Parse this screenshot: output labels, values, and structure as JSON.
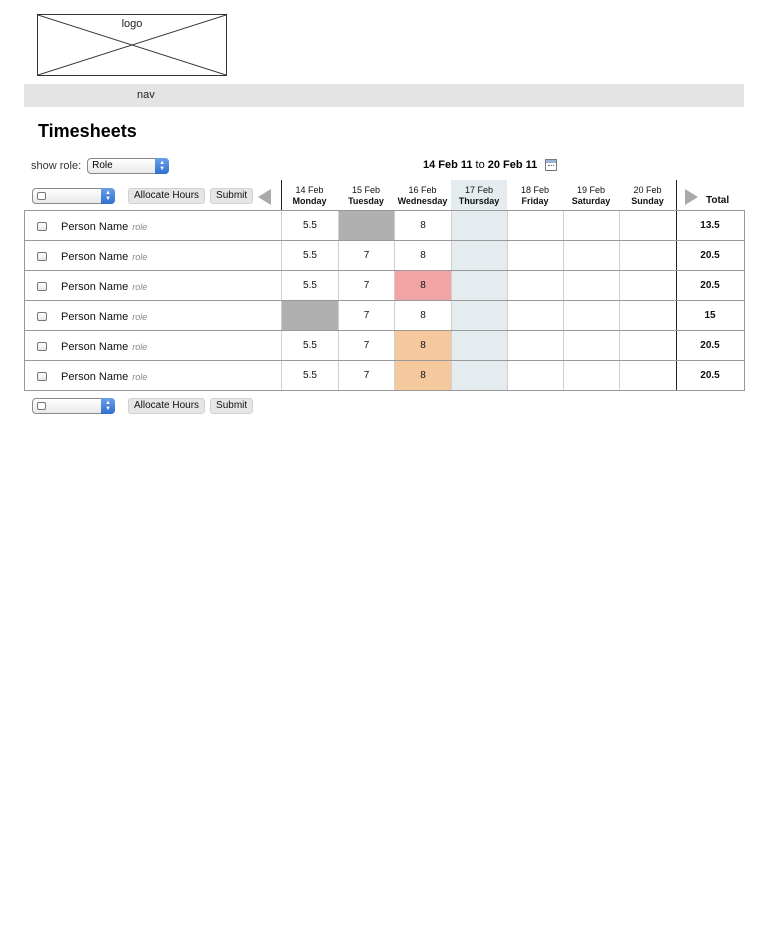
{
  "logo": {
    "label": "logo"
  },
  "nav": {
    "label": "nav"
  },
  "page": {
    "title": "Timesheets"
  },
  "filter": {
    "label": "show role:",
    "selected": "Role"
  },
  "date_range": {
    "start": "14 Feb 11",
    "to": "to",
    "end": "20 Feb 11"
  },
  "toolbar": {
    "allocate_label": "Allocate Hours",
    "submit_label": "Submit"
  },
  "columns": [
    {
      "date": "14 Feb",
      "day": "Monday"
    },
    {
      "date": "15 Feb",
      "day": "Tuesday"
    },
    {
      "date": "16 Feb",
      "day": "Wednesday"
    },
    {
      "date": "17 Feb",
      "day": "Thursday"
    },
    {
      "date": "18 Feb",
      "day": "Friday"
    },
    {
      "date": "19 Feb",
      "day": "Saturday"
    },
    {
      "date": "20 Feb",
      "day": "Sunday"
    }
  ],
  "total_label": "Total",
  "highlighted_day": "Thursday",
  "colors": {
    "unavailable": "#b0b0b0",
    "over": "#f2a4a4",
    "warning": "#f6c89e",
    "today": "#e4ecf0"
  },
  "rows": [
    {
      "name": "Person Name",
      "role": "role",
      "hours": [
        "5.5",
        "",
        "8",
        "",
        "",
        "",
        ""
      ],
      "status": [
        "",
        "unavailable",
        "",
        "",
        "",
        "",
        ""
      ],
      "total": "13.5"
    },
    {
      "name": "Person Name",
      "role": "role",
      "hours": [
        "5.5",
        "7",
        "8",
        "",
        "",
        "",
        ""
      ],
      "status": [
        "",
        "",
        "",
        "",
        "",
        "",
        ""
      ],
      "total": "20.5"
    },
    {
      "name": "Person Name",
      "role": "role",
      "hours": [
        "5.5",
        "7",
        "8",
        "",
        "",
        "",
        ""
      ],
      "status": [
        "",
        "",
        "over",
        "",
        "",
        "",
        ""
      ],
      "total": "20.5"
    },
    {
      "name": "Person Name",
      "role": "role",
      "hours": [
        "",
        "7",
        "8",
        "",
        "",
        "",
        ""
      ],
      "status": [
        "unavailable",
        "",
        "",
        "",
        "",
        "",
        ""
      ],
      "total": "15"
    },
    {
      "name": "Person Name",
      "role": "role",
      "hours": [
        "5.5",
        "7",
        "8",
        "",
        "",
        "",
        ""
      ],
      "status": [
        "",
        "",
        "warning",
        "",
        "",
        "",
        ""
      ],
      "total": "20.5"
    },
    {
      "name": "Person Name",
      "role": "role",
      "hours": [
        "5.5",
        "7",
        "8",
        "",
        "",
        "",
        ""
      ],
      "status": [
        "",
        "",
        "warning",
        "",
        "",
        "",
        ""
      ],
      "total": "20.5"
    }
  ]
}
